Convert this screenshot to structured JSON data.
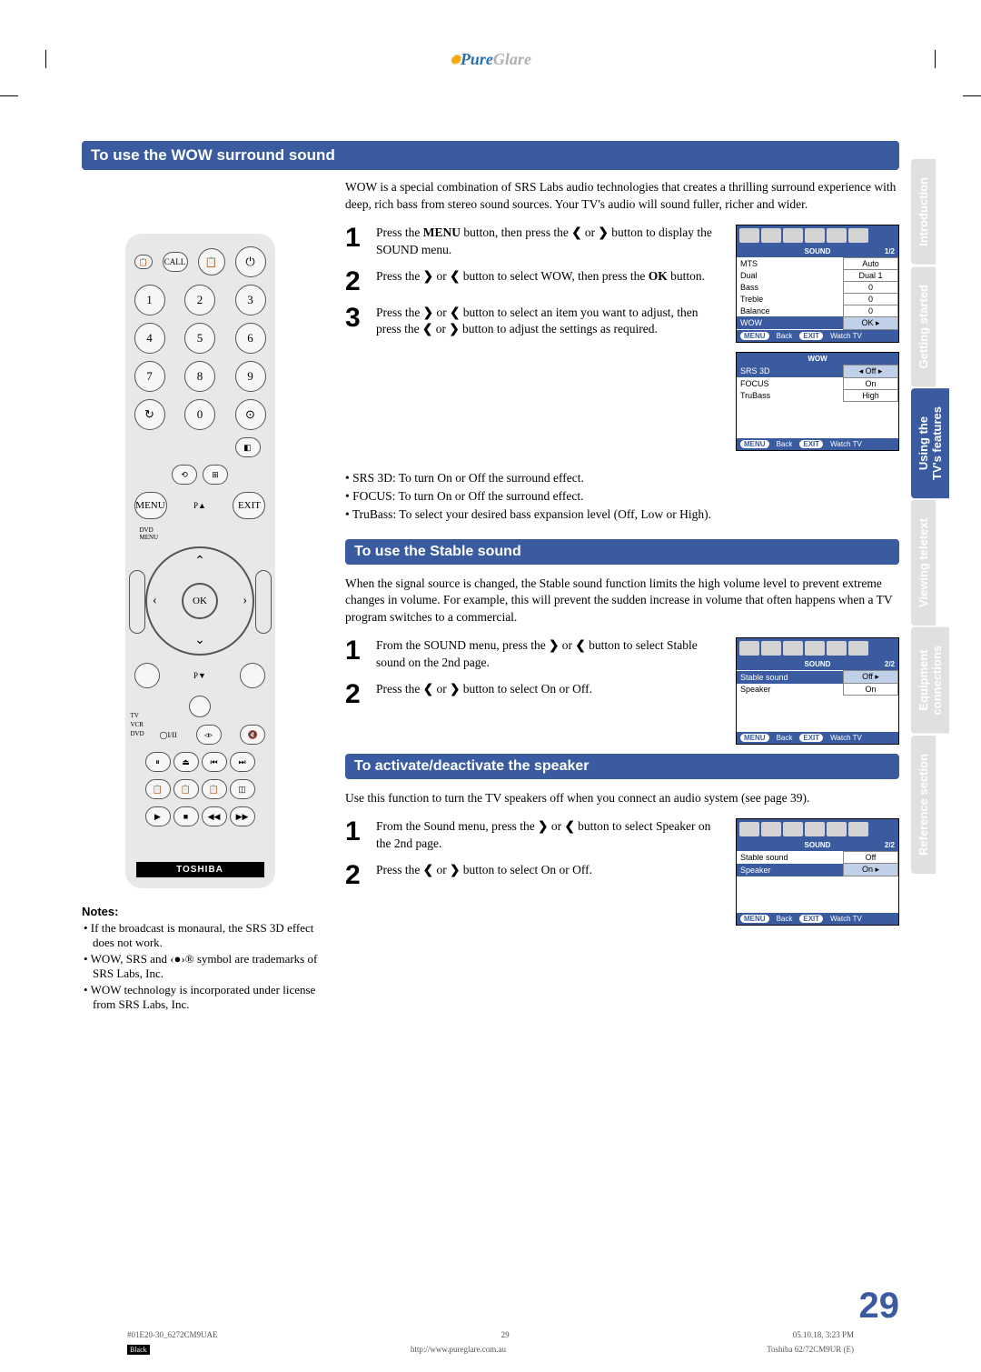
{
  "logo": {
    "gear": "✺",
    "part1": "Pure",
    "part2": "Glare"
  },
  "sideTabs": [
    {
      "label": "Introduction",
      "class": "tab-grey"
    },
    {
      "label": "Getting started",
      "class": "tab-grey"
    },
    {
      "label": "Using the\nTV's features",
      "class": "tab-blue"
    },
    {
      "label": "Viewing teletext",
      "class": "tab-grey"
    },
    {
      "label": "Equipment\nconnections",
      "class": "tab-grey"
    },
    {
      "label": "Reference section",
      "class": "tab-grey"
    }
  ],
  "section1_title": "To use the WOW surround sound",
  "wow_intro": "WOW is a special combination of SRS Labs audio technologies that creates a thrilling surround experience with deep, rich bass from stereo sound sources. Your TV's audio will sound fuller, richer and wider.",
  "wow_steps": [
    "Press the <b>MENU</b> button, then press the <b>❮</b> or <b>❯</b> button to display the SOUND menu.",
    "Press the <b>❯</b> or <b>❮</b> button to select WOW, then press the <b>OK</b> button.",
    "Press the <b>❯</b> or <b>❮</b> button to select an item you want to adjust, then press the <b>❮</b> or <b>❯</b> button to adjust the settings as required."
  ],
  "wow_bullets": [
    "SRS 3D: To turn On or Off the surround effect.",
    "FOCUS: To turn On or Off the surround effect.",
    "TruBass: To select your desired bass expansion level (Off, Low or High)."
  ],
  "section2_title": "To use the Stable sound",
  "stable_intro": "When the signal source is changed, the Stable sound function limits the high volume level to prevent extreme changes in volume. For example, this will prevent the sudden increase in volume that often happens when a TV program switches to a commercial.",
  "stable_steps": [
    "From the SOUND menu, press the <b>❯</b> or <b>❮</b> button to select Stable sound on the 2nd page.",
    "Press the <b>❮</b> or <b>❯</b> button to select On or Off."
  ],
  "section3_title": "To activate/deactivate the speaker",
  "speaker_intro": "Use this function to turn the TV speakers off when you connect an audio system (see page 39).",
  "speaker_steps": [
    "From the Sound menu, press the <b>❯</b> or <b>❮</b> button to select Speaker on the 2nd page.",
    "Press the <b>❮</b> or <b>❯</b> button to select On or Off."
  ],
  "notes_title": "Notes:",
  "notes": [
    "If the broadcast is monaural, the SRS 3D effect does not work.",
    "WOW, SRS and ‹●›® symbol are trademarks of SRS Labs, Inc.",
    "WOW technology is incorporated under license from SRS Labs, Inc."
  ],
  "menu_sound": {
    "title": "SOUND",
    "page": "1/2",
    "rows": [
      {
        "k": "MTS",
        "v": "Auto"
      },
      {
        "k": "Dual",
        "v": "Dual 1"
      },
      {
        "k": "Bass",
        "v": "0"
      },
      {
        "k": "Treble",
        "v": "0"
      },
      {
        "k": "Balance",
        "v": "0"
      },
      {
        "k": "WOW",
        "v": "OK",
        "hl": true
      }
    ],
    "footer": [
      "MENU",
      "Back",
      "EXIT",
      "Watch TV"
    ]
  },
  "menu_wow": {
    "title": "WOW",
    "rows": [
      {
        "k": "SRS 3D",
        "v": "Off",
        "hl": true
      },
      {
        "k": "FOCUS",
        "v": "On"
      },
      {
        "k": "TruBass",
        "v": "High"
      }
    ],
    "footer": [
      "MENU",
      "Back",
      "EXIT",
      "Watch TV"
    ]
  },
  "menu_stable": {
    "title": "SOUND",
    "page": "2/2",
    "rows": [
      {
        "k": "Stable sound",
        "v": "Off",
        "hl": true
      },
      {
        "k": "Speaker",
        "v": "On"
      }
    ],
    "footer": [
      "MENU",
      "Back",
      "EXIT",
      "Watch TV"
    ]
  },
  "menu_speaker": {
    "title": "SOUND",
    "page": "2/2",
    "rows": [
      {
        "k": "Stable sound",
        "v": "Off"
      },
      {
        "k": "Speaker",
        "v": "On",
        "hl": true
      }
    ],
    "footer": [
      "MENU",
      "Back",
      "EXIT",
      "Watch TV"
    ]
  },
  "remote": {
    "call": "CALL",
    "numbers": [
      "1",
      "2",
      "3",
      "4",
      "5",
      "6",
      "7",
      "8",
      "9",
      "0"
    ],
    "menu": "MENU",
    "exit": "EXIT",
    "dvdmenu": "DVD\nMENU",
    "ok": "OK",
    "pa": "P▲",
    "pv": "P▼",
    "brand": "TOSHIBA",
    "modes": "TV\nVCR\nDVD"
  },
  "page_number": "29",
  "footer": {
    "file": "#01E20-30_6272CM9UAE",
    "pg": "29",
    "date": "05.10.18, 3:23 PM",
    "black": "Black",
    "url": "http://www.pureglare.com.au",
    "model": "Toshiba 62/72CM9UR (E)"
  }
}
